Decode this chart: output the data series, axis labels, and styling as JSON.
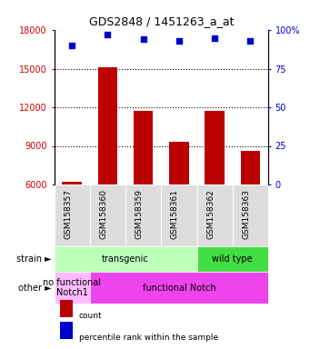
{
  "title": "GDS2848 / 1451263_a_at",
  "samples": [
    "GSM158357",
    "GSM158360",
    "GSM158359",
    "GSM158361",
    "GSM158362",
    "GSM158363"
  ],
  "counts": [
    6200,
    15100,
    11700,
    9300,
    11700,
    8600
  ],
  "percentiles": [
    90,
    97,
    94,
    93,
    95,
    93
  ],
  "ylim_left": [
    6000,
    18000
  ],
  "ylim_right": [
    0,
    100
  ],
  "yticks_left": [
    6000,
    9000,
    12000,
    15000,
    18000
  ],
  "yticks_right": [
    0,
    25,
    50,
    75,
    100
  ],
  "bar_color": "#bb0000",
  "dot_color": "#0000cc",
  "bar_bottom": 6000,
  "strain_labels": [
    {
      "text": "transgenic",
      "start": 0,
      "end": 4,
      "color": "#bbffbb"
    },
    {
      "text": "wild type",
      "start": 4,
      "end": 6,
      "color": "#44dd44"
    }
  ],
  "other_labels": [
    {
      "text": "no functional\nNotch1",
      "start": 0,
      "end": 1,
      "color": "#ffbbff"
    },
    {
      "text": "functional Notch",
      "start": 1,
      "end": 6,
      "color": "#ee44ee"
    }
  ],
  "legend_items": [
    {
      "color": "#bb0000",
      "label": "count"
    },
    {
      "color": "#0000cc",
      "label": "percentile rank within the sample"
    }
  ],
  "tick_label_color_left": "#cc0000",
  "tick_label_color_right": "#0000cc",
  "grid_color": "#000000",
  "background_color": "#ffffff",
  "xlabel_gray": "#cccccc",
  "n_samples": 6
}
